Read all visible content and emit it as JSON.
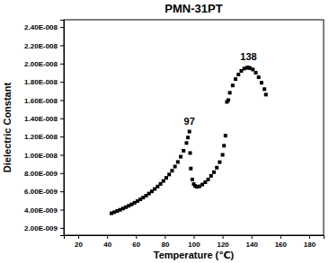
{
  "chart_data": {
    "type": "scatter",
    "title": "PMN-31PT",
    "x_label": "Temperature (℃)",
    "y_label": "Dielectric Constant",
    "color": "#000000",
    "marker": "square",
    "x": [
      43,
      45,
      47,
      49,
      51,
      53,
      55,
      57,
      59,
      61,
      63,
      65,
      67,
      69,
      71,
      73,
      75,
      77,
      79,
      81,
      83,
      85,
      87,
      89,
      91,
      93,
      95,
      96,
      97,
      97.5,
      98,
      99,
      100,
      101,
      102,
      104,
      106,
      108,
      110,
      112,
      114,
      116,
      118,
      120,
      121,
      122,
      123,
      124,
      125,
      127,
      129,
      131,
      133,
      135,
      137,
      138,
      139,
      141,
      143,
      145,
      147,
      149,
      150
    ],
    "values": [
      3.6e-09,
      3.72e-09,
      3.85e-09,
      3.98e-09,
      4.12e-09,
      4.27e-09,
      4.42e-09,
      4.58e-09,
      4.75e-09,
      4.93e-09,
      5.12e-09,
      5.32e-09,
      5.53e-09,
      5.76e-09,
      6e-09,
      6.26e-09,
      6.53e-09,
      6.82e-09,
      7.14e-09,
      7.48e-09,
      7.85e-09,
      8.26e-09,
      8.72e-09,
      9.22e-09,
      9.8e-09,
      1.045e-08,
      1.13e-08,
      1.19e-08,
      1.255e-08,
      1.02e-08,
      8.5e-09,
      7.3e-09,
      6.8e-09,
      6.6e-09,
      6.5e-09,
      6.55e-09,
      6.75e-09,
      7e-09,
      7.3e-09,
      7.7e-09,
      8.1e-09,
      8.6e-09,
      9.2e-09,
      1e-08,
      1.1e-08,
      1.21e-08,
      1.58e-08,
      1.6e-08,
      1.68e-08,
      1.76e-08,
      1.83e-08,
      1.88e-08,
      1.92e-08,
      1.945e-08,
      1.955e-08,
      1.955e-08,
      1.95e-08,
      1.935e-08,
      1.9e-08,
      1.85e-08,
      1.79e-08,
      1.72e-08,
      1.66e-08
    ],
    "xlim": [
      10,
      190
    ],
    "xticks": [
      20,
      40,
      60,
      80,
      100,
      120,
      140,
      160,
      180
    ],
    "ylim": [
      1.2e-09,
      2.48e-08
    ],
    "yticks": [
      {
        "value": 2e-09,
        "label": "2.00E-009"
      },
      {
        "value": 4e-09,
        "label": "4.00E-009"
      },
      {
        "value": 6e-09,
        "label": "6.00E-009"
      },
      {
        "value": 8e-09,
        "label": "8.00E-009"
      },
      {
        "value": 1e-08,
        "label": "1.00E-008"
      },
      {
        "value": 1.2e-08,
        "label": "1.20E-008"
      },
      {
        "value": 1.4e-08,
        "label": "1.40E-008"
      },
      {
        "value": 1.6e-08,
        "label": "1.60E-008"
      },
      {
        "value": 1.8e-08,
        "label": "1.80E-008"
      },
      {
        "value": 2e-08,
        "label": "2.00E-008"
      },
      {
        "value": 2.2e-08,
        "label": "2.20E-008"
      },
      {
        "value": 2.4e-08,
        "label": "2.40E-008"
      }
    ],
    "annotations": [
      {
        "text": "97",
        "x": 97,
        "y": 1.255e-08
      },
      {
        "text": "138",
        "x": 138,
        "y": 1.955e-08
      }
    ]
  }
}
